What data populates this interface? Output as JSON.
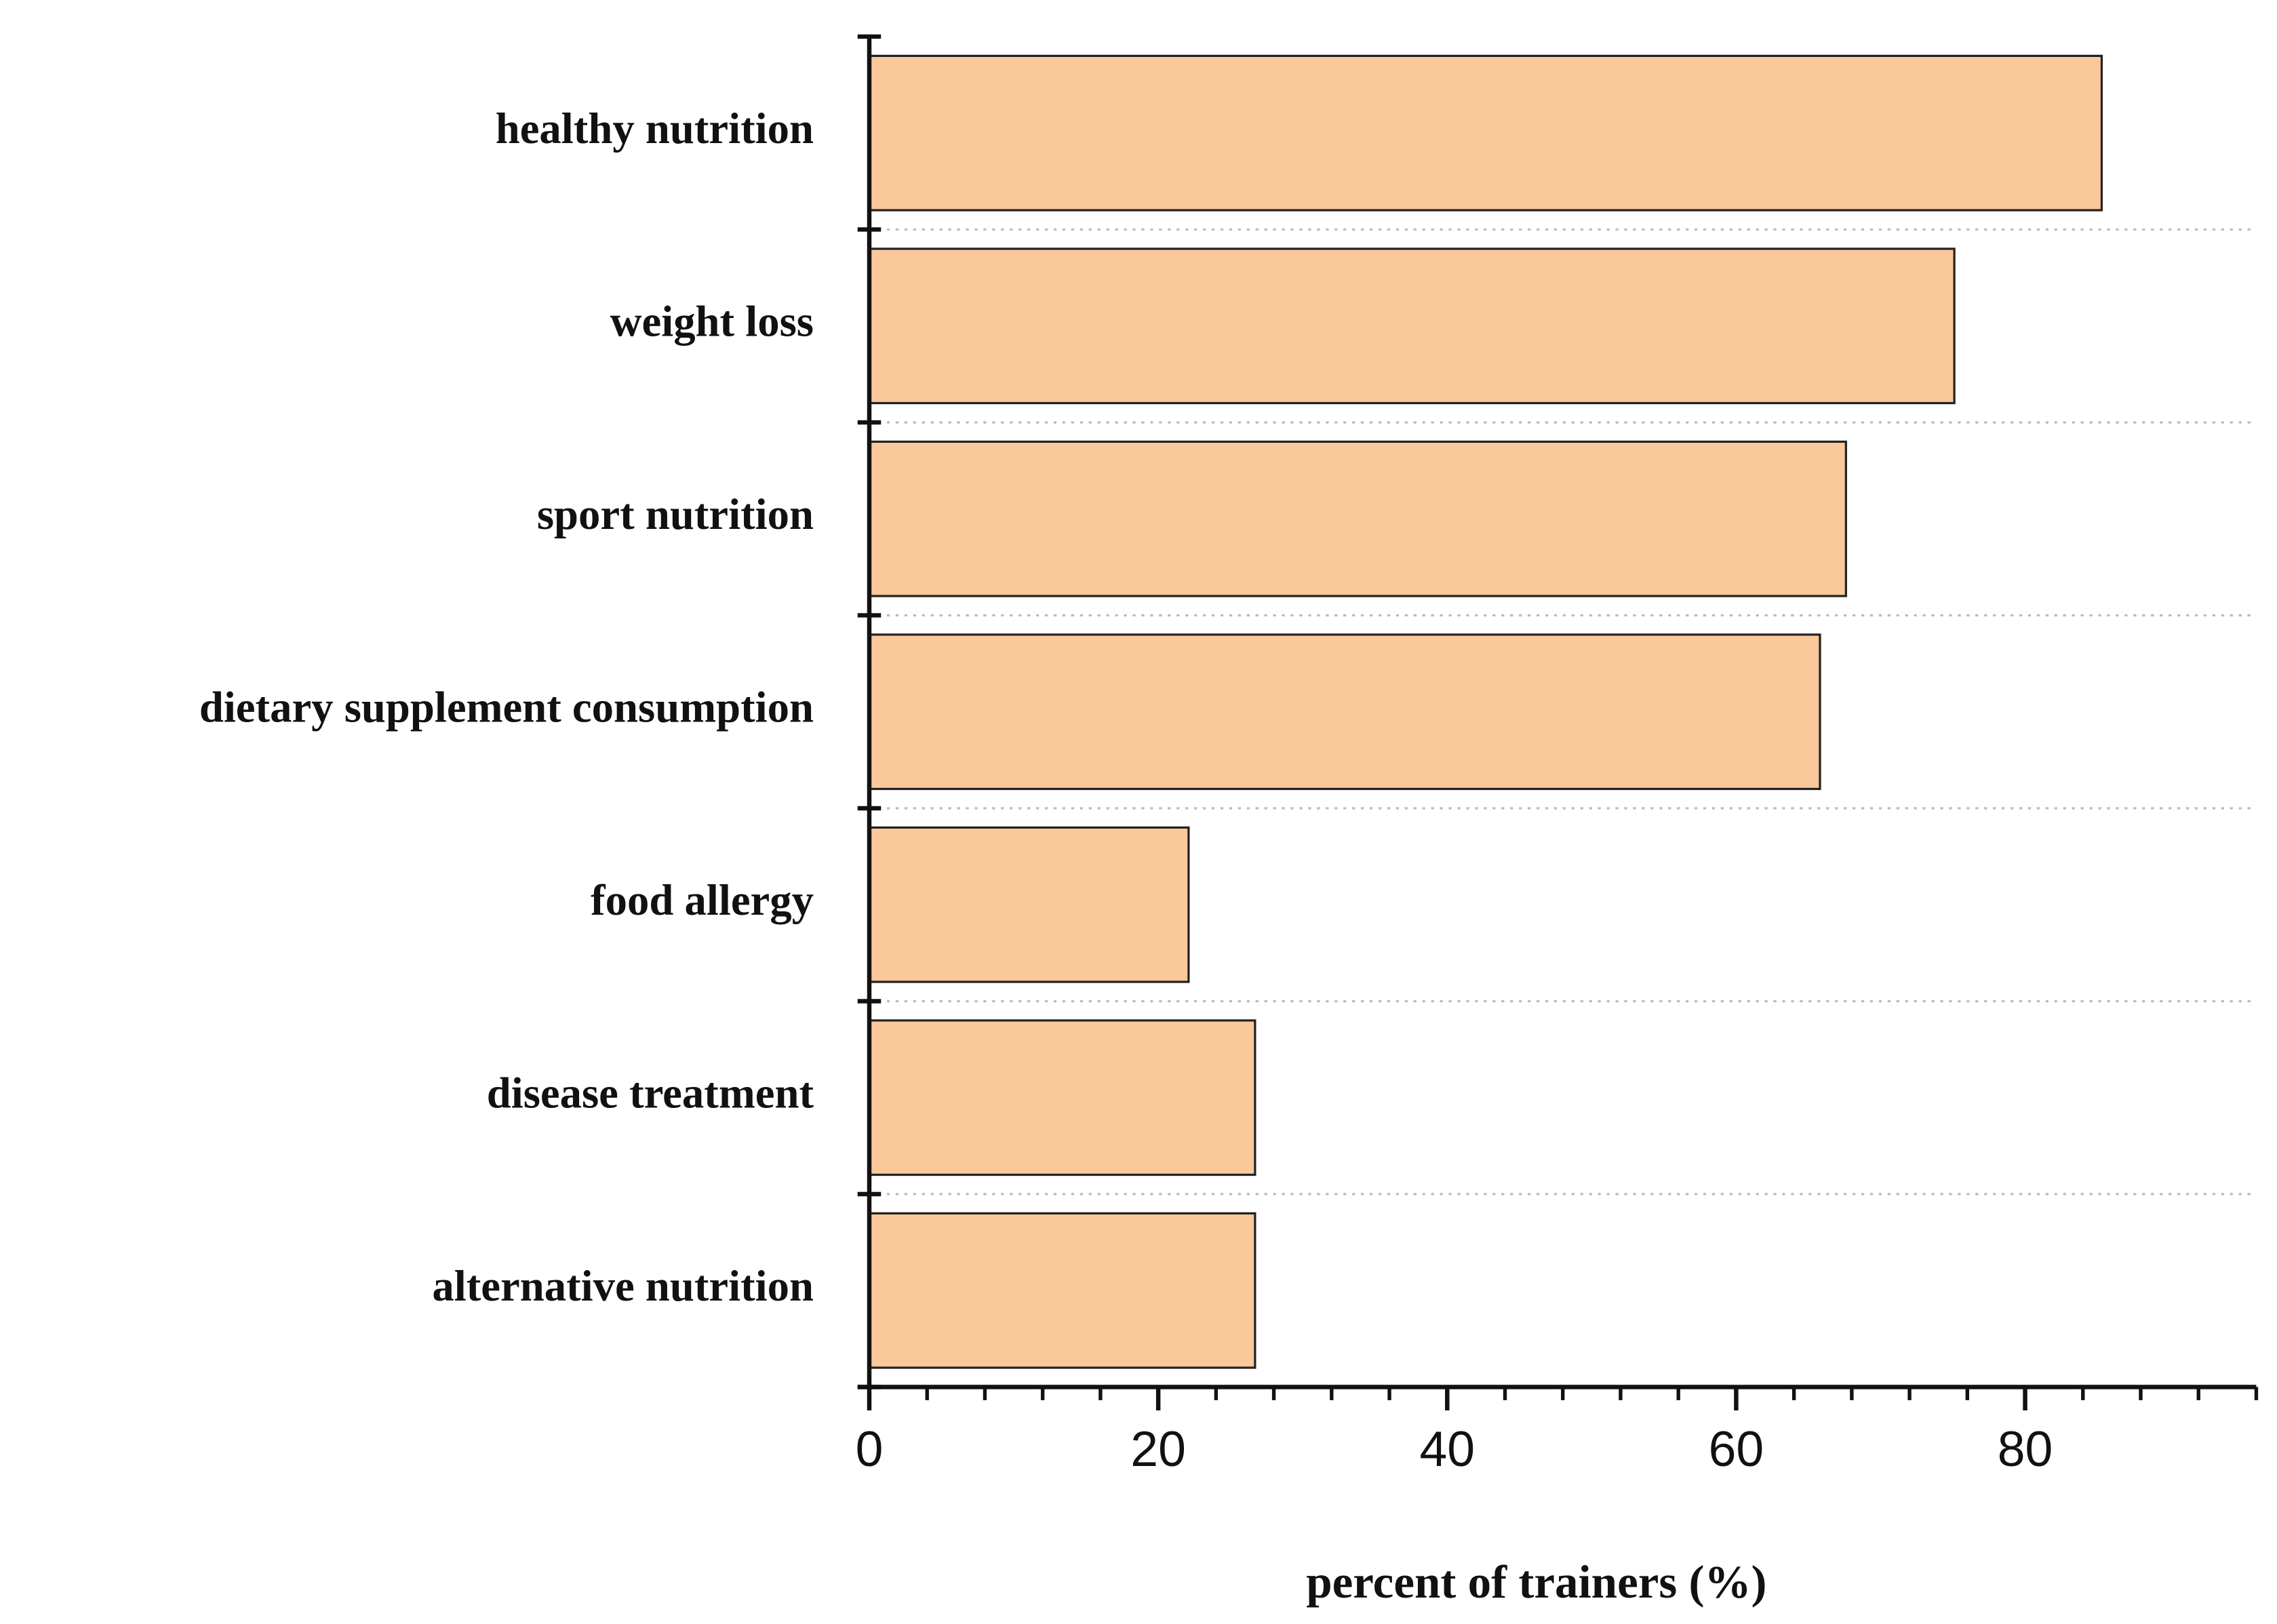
{
  "chart_data": {
    "type": "barh",
    "x_label": "percent of trainers (%)",
    "categories": [
      "healthy nutrition",
      "weight loss",
      "sport nutrition",
      "dietary supplement consumption",
      "food allergy",
      "disease treatment",
      "alternative nutrition"
    ],
    "values": [
      85.3,
      75.1,
      67.6,
      65.8,
      22.1,
      26.7,
      26.7
    ],
    "color": "#fac89a",
    "xlim": [
      0,
      96
    ],
    "xticks": [
      0,
      20,
      40,
      60,
      80
    ],
    "grid": true
  }
}
